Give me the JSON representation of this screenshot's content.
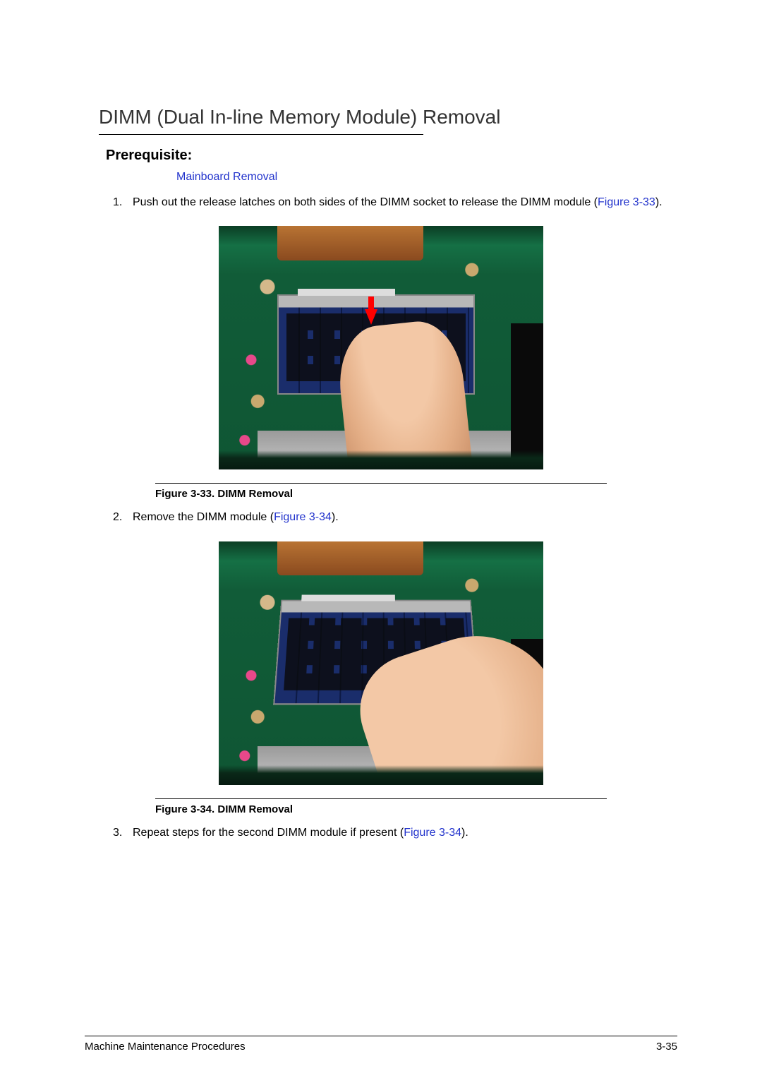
{
  "title": "DIMM (Dual In-line Memory Module) Removal",
  "subheading": "Prerequisite:",
  "prereq_link": "Mainboard Removal",
  "steps": {
    "s1": {
      "num": "1.",
      "text_a": "Push out the release latches on both sides of the DIMM socket to release the DIMM module (",
      "ref": "Figure 3-33",
      "text_b": ")."
    },
    "s2": {
      "num": "2.",
      "text_a": "Remove the DIMM module (",
      "ref": "Figure 3-34",
      "text_b": ")."
    },
    "s3": {
      "num": "3.",
      "text_a": "Repeat steps for the second DIMM module if present (",
      "ref": "Figure 3-34",
      "text_b": ")."
    }
  },
  "figures": {
    "f33": {
      "caption": "Figure 3-33.  DIMM Removal"
    },
    "f34": {
      "caption": "Figure 3-34.  DIMM Removal"
    }
  },
  "footer": {
    "left": "Machine Maintenance Procedures",
    "right": "3-35"
  },
  "colors": {
    "link": "#2233cc",
    "text": "#000000",
    "board_green": "#115c38"
  }
}
